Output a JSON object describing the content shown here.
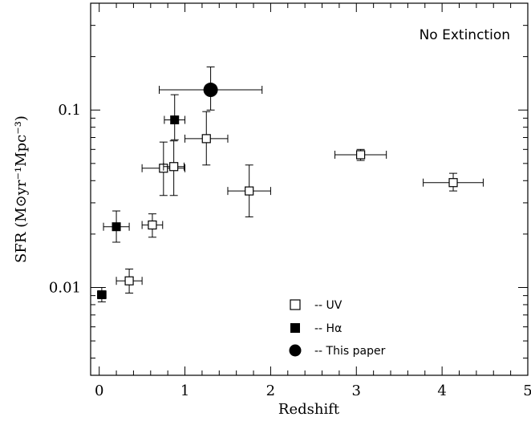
{
  "chart_data": {
    "type": "scatter",
    "title": "",
    "xlabel": "Redshift",
    "ylabel": "SFR (M⊙yr⁻¹Mpc⁻³)",
    "xlim": [
      -0.1,
      5.0
    ],
    "ylim": [
      0.0032,
      0.4
    ],
    "y_scale": "log",
    "grid": false,
    "annotation": "No Extinction",
    "x_ticks": [
      0,
      1,
      2,
      3,
      4,
      5
    ],
    "x_tick_labels": [
      "0",
      "1",
      "2",
      "3",
      "4",
      "5"
    ],
    "y_ticks": [
      0.01,
      0.1
    ],
    "y_tick_labels": [
      "0.01",
      "0.1"
    ],
    "legend_position": "bottom-center",
    "series": [
      {
        "name": "-- UV",
        "marker": "open-square",
        "points": [
          {
            "x": 0.35,
            "y": 0.0109,
            "xerr": [
              0.15,
              0.15
            ],
            "yerr": [
              0.0016,
              0.0018
            ]
          },
          {
            "x": 0.62,
            "y": 0.0225,
            "xerr": [
              0.12,
              0.12
            ],
            "yerr": [
              0.0033,
              0.0035
            ]
          },
          {
            "x": 0.75,
            "y": 0.047,
            "xerr": [
              0.25,
              0.25
            ],
            "yerr": [
              0.014,
              0.019
            ]
          },
          {
            "x": 0.87,
            "y": 0.048,
            "xerr": [
              0.12,
              0.12
            ],
            "yerr": [
              0.015,
              0.019
            ]
          },
          {
            "x": 1.25,
            "y": 0.069,
            "xerr": [
              0.25,
              0.25
            ],
            "yerr": [
              0.02,
              0.029
            ]
          },
          {
            "x": 1.75,
            "y": 0.035,
            "xerr": [
              0.25,
              0.25
            ],
            "yerr": [
              0.01,
              0.014
            ]
          },
          {
            "x": 3.05,
            "y": 0.056,
            "xerr": [
              0.3,
              0.3
            ],
            "yerr": [
              0.004,
              0.004
            ]
          },
          {
            "x": 4.13,
            "y": 0.039,
            "xerr": [
              0.35,
              0.35
            ],
            "yerr": [
              0.004,
              0.005
            ]
          }
        ]
      },
      {
        "name": "-- Hα",
        "marker": "filled-square",
        "points": [
          {
            "x": 0.03,
            "y": 0.0091,
            "xerr": [
              0.05,
              0.05
            ],
            "yerr": [
              0.0008,
              0.0009
            ]
          },
          {
            "x": 0.2,
            "y": 0.022,
            "xerr": [
              0.15,
              0.15
            ],
            "yerr": [
              0.004,
              0.005
            ]
          },
          {
            "x": 0.88,
            "y": 0.088,
            "xerr": [
              0.12,
              0.12
            ],
            "yerr": [
              0.02,
              0.034
            ]
          }
        ]
      },
      {
        "name": "-- This paper",
        "marker": "filled-circle",
        "points": [
          {
            "x": 1.3,
            "y": 0.13,
            "xerr": [
              0.6,
              0.6
            ],
            "yerr": [
              0.03,
              0.045
            ]
          }
        ]
      }
    ]
  }
}
